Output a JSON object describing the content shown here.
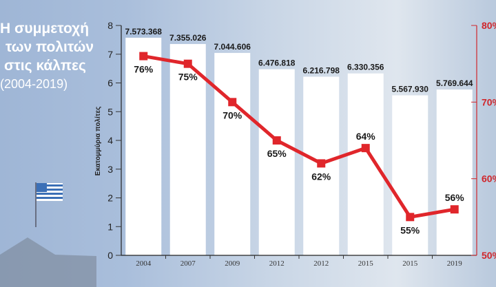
{
  "title_lines": [
    "Η συμμετοχή",
    "των πολιτών",
    "στις κάλπες"
  ],
  "subtitle": "(2004-2019)",
  "chart_data": {
    "type": "bar+line",
    "title": "Η συμμετοχή των πολιτών στις κάλπες (2004-2019)",
    "categories": [
      "2004",
      "2007",
      "2009",
      "2012",
      "2012",
      "2015",
      "2015",
      "2019"
    ],
    "series": [
      {
        "name": "Εκατομμύρια πολίτες",
        "type": "bar",
        "axis": "left",
        "values": [
          7.573368,
          7.355026,
          7.044606,
          6.476818,
          6.216798,
          6.330356,
          5.56793,
          5.769644
        ],
        "labels": [
          "7.573.368",
          "7.355.026",
          "7.044.606",
          "6.476.818",
          "6.216.798",
          "6.330.356",
          "5.567.930",
          "5.769.644"
        ],
        "color": "#ffffff"
      },
      {
        "name": "Συμμετοχή",
        "type": "line",
        "axis": "right",
        "values": [
          76,
          75,
          70,
          65,
          62,
          64,
          55,
          56
        ],
        "labels": [
          "76%",
          "75%",
          "70%",
          "65%",
          "62%",
          "64%",
          "55%",
          "56%"
        ],
        "color": "#e0262b"
      }
    ],
    "ylabel": "Εκατομμύρια πολίτες",
    "ylim": [
      0,
      8
    ],
    "yticks": [
      "0",
      "1",
      "2",
      "3",
      "4",
      "5",
      "6",
      "7",
      "8"
    ],
    "y2lim": [
      50,
      80
    ],
    "y2ticks": [
      "50%",
      "60%",
      "70%",
      "80%"
    ],
    "grid": false
  }
}
